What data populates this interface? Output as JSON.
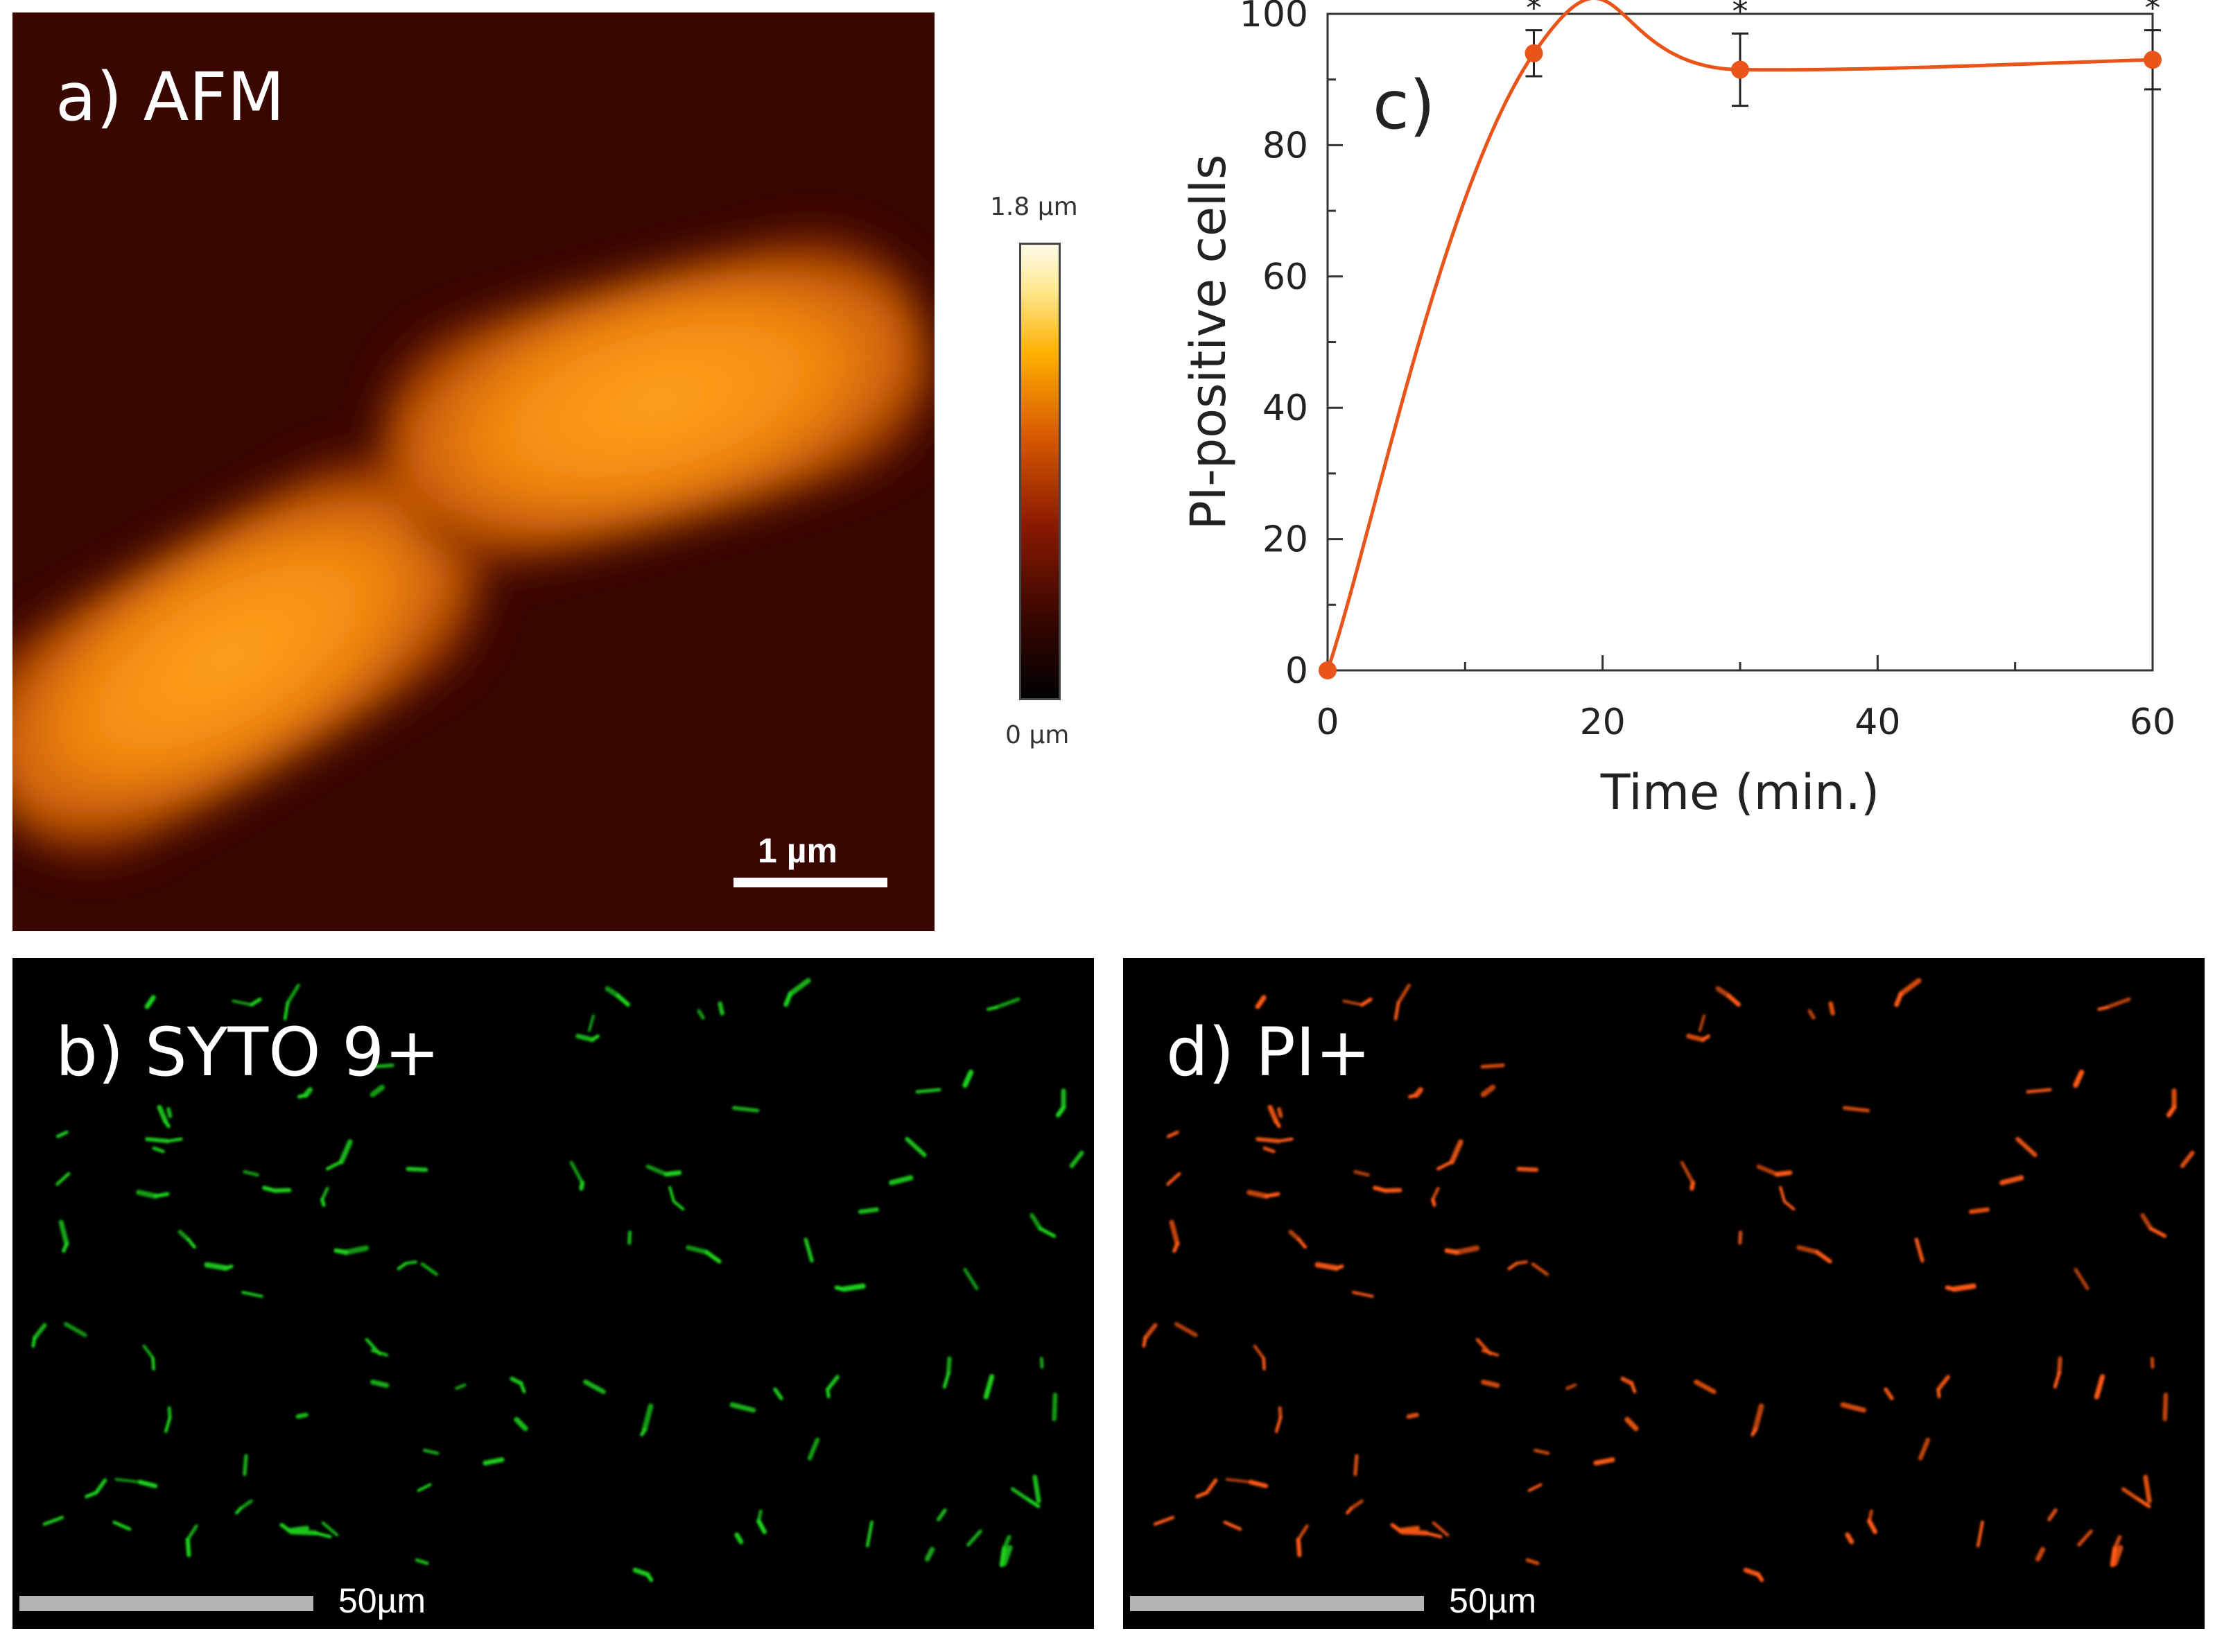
{
  "panels": {
    "a": {
      "label": "a) AFM",
      "scalebar": "1 µm"
    },
    "b": {
      "label": "b) SYTO 9+",
      "scalebar": "50µm"
    },
    "d": {
      "label": "d) PI+",
      "scalebar": "50µm"
    }
  },
  "colorbar": {
    "max_label": "1.8 µm",
    "min_label": "0 µm"
  },
  "colors": {
    "series": "#e8541a",
    "syto_cells": "#1ed21e",
    "pi_cells": "#ff5a14",
    "afm_background": "#3a0600"
  },
  "chart_data": {
    "type": "line",
    "panel_label": "c)",
    "xlabel": "Time (min.)",
    "ylabel": "PI-positive cells",
    "xlim": [
      0,
      60
    ],
    "ylim": [
      0,
      100
    ],
    "xticks": [
      0,
      20,
      40,
      60
    ],
    "yticks": [
      0,
      20,
      40,
      60,
      80,
      100
    ],
    "smooth": true,
    "grid": false,
    "series": [
      {
        "x": [
          0,
          15,
          30,
          60
        ],
        "values": [
          0,
          94,
          91.5,
          93
        ],
        "errors": [
          0,
          3.5,
          5.5,
          4.5
        ],
        "significance": [
          "",
          "*",
          "*",
          "*"
        ]
      }
    ]
  }
}
